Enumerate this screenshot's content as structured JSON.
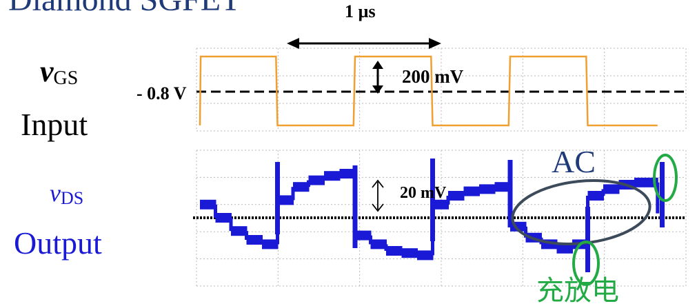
{
  "text": {
    "title": "Diamond SGFET",
    "vgs_symbol": "v",
    "vgs_sub": "GS",
    "input_label": "Input",
    "vds_symbol": "v",
    "vds_sub": "DS",
    "output_label": "Output",
    "bias_label": "- 0.8 V",
    "period_label": "1 µs",
    "input_amp_label": "200 mV",
    "output_amp_label": "20 mV",
    "ac_label": "AC",
    "bottom_text": "充放电"
  },
  "colors": {
    "title": "#1f3a78",
    "input_trace": "#f0a030",
    "output_trace": "#1a1ad6",
    "ac_ellipse": "#3c4a5a",
    "highlight_circles": "#22aa44",
    "grid": "#b8b8b8"
  },
  "chart_data": [
    {
      "type": "line",
      "title": "Diamond SGFET",
      "series": [
        {
          "name": "Input",
          "x_unit": "µs",
          "y_unit": "V",
          "x": [
            0.0,
            0.005,
            0.49,
            0.5,
            0.99,
            1.0,
            1.49,
            1.5,
            1.99,
            2.0,
            2.49,
            2.5,
            2.95
          ],
          "y": [
            -0.9,
            -0.7,
            -0.7,
            -0.9,
            -0.9,
            -0.7,
            -0.7,
            -0.9,
            -0.9,
            -0.7,
            -0.7,
            -0.9,
            -0.9
          ]
        },
        {
          "name": "Output",
          "note_unit": "mV relative to mean",
          "x": [
            0.0,
            0.1,
            0.2,
            0.3,
            0.4,
            0.5,
            0.6,
            0.7,
            0.8,
            0.9,
            1.0,
            1.1,
            1.2,
            1.3,
            1.4,
            1.5,
            1.6,
            1.7,
            1.8,
            1.9,
            2.0,
            2.1,
            2.2,
            2.3,
            2.4,
            2.5,
            2.6,
            2.7,
            2.8,
            2.95
          ],
          "y": [
            6,
            0,
            -6,
            -10,
            -12,
            8,
            14,
            17,
            19,
            20,
            -8,
            -12,
            -15,
            -16,
            -17,
            6,
            10,
            12,
            13,
            14,
            -4,
            -9,
            -12,
            -14,
            -12,
            10,
            13,
            15,
            16,
            2
          ]
        }
      ],
      "annotations": [
        "- 0.8 V",
        "1 µs",
        "200 mV",
        "20 mV",
        "AC"
      ],
      "legend": "none",
      "grid": true
    }
  ]
}
